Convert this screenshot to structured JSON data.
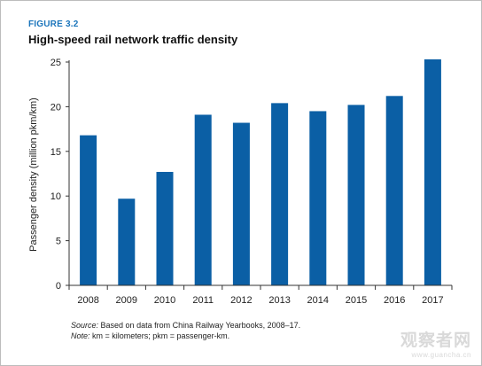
{
  "figure": {
    "label": "FIGURE 3.2",
    "title": "High-speed rail network traffic density"
  },
  "chart_data": {
    "type": "bar",
    "title": "High-speed rail network traffic density",
    "xlabel": "",
    "ylabel": "Passenger density (million pkm/km)",
    "categories": [
      "2008",
      "2009",
      "2010",
      "2011",
      "2012",
      "2013",
      "2014",
      "2015",
      "2016",
      "2017"
    ],
    "values": [
      16.8,
      9.7,
      12.7,
      19.1,
      18.2,
      20.4,
      19.5,
      20.2,
      21.2,
      25.3
    ],
    "ylim": [
      0,
      25
    ],
    "yticks": [
      0,
      5,
      10,
      15,
      20,
      25
    ],
    "grid": false,
    "legend": "none",
    "bar_color": "#0b5fa5"
  },
  "notes": {
    "source_lead": "Source:",
    "source_text": " Based on data from China Railway Yearbooks, 2008–17.",
    "note_lead": "Note:",
    "note_text": " km = kilometers; pkm = passenger-km."
  },
  "watermark": {
    "main": "观察者网",
    "url": "www.guancha.cn"
  }
}
